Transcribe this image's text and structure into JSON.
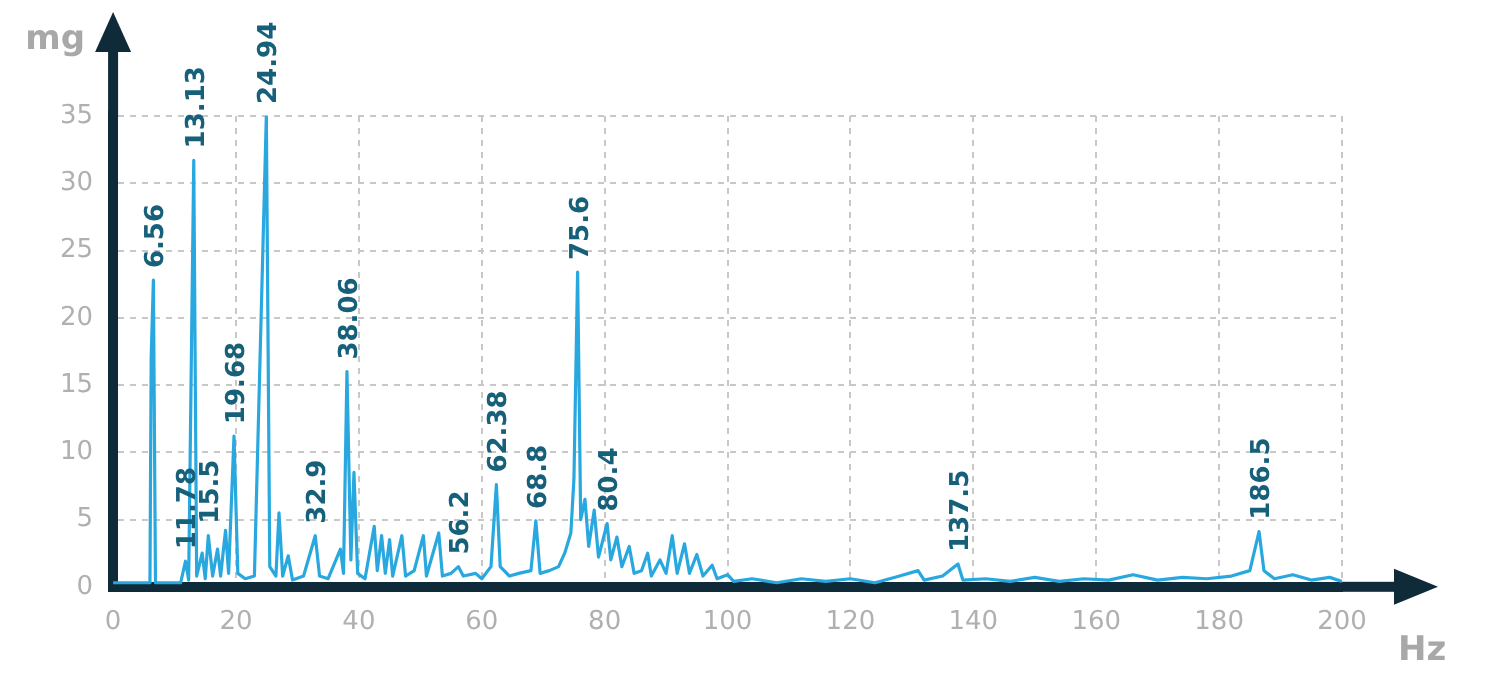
{
  "chart_data": {
    "type": "line",
    "xlabel": "Hz",
    "ylabel": "mg",
    "xlim": [
      0,
      200
    ],
    "xticks": [
      0,
      20,
      40,
      60,
      80,
      100,
      120,
      140,
      160,
      180,
      200
    ],
    "ylim": [
      0,
      35
    ],
    "yticks": [
      0,
      5,
      10,
      15,
      20,
      25,
      30,
      35
    ],
    "grid": true,
    "legend": false,
    "marker": "none",
    "line_style": "solid",
    "series": [
      {
        "color": "#29a8e0",
        "x": [
          0,
          6,
          6.2,
          6.56,
          6.9,
          11,
          11.78,
          12.3,
          13.13,
          13.6,
          14.5,
          15,
          15.5,
          16.2,
          17,
          17.5,
          18.3,
          18.8,
          19.68,
          20.3,
          21.5,
          23,
          24.94,
          25.5,
          26.5,
          27,
          27.6,
          28.5,
          29.2,
          31,
          32.9,
          33.6,
          35,
          37,
          37.5,
          38.06,
          38.7,
          39.2,
          39.8,
          41,
          42.5,
          43,
          43.7,
          44.3,
          45,
          45.5,
          47,
          47.6,
          49,
          50.5,
          51,
          53,
          53.6,
          55,
          56.2,
          57,
          59,
          60,
          61.5,
          62.38,
          63,
          64.5,
          66,
          68,
          68.8,
          69.5,
          71,
          72.5,
          73.5,
          74.5,
          75,
          75.6,
          76.1,
          76.8,
          77.4,
          78.3,
          79,
          80.4,
          81,
          82,
          82.8,
          84,
          84.8,
          86,
          87,
          87.6,
          89,
          90,
          91,
          91.8,
          93,
          93.8,
          95,
          96,
          97.5,
          98.3,
          100,
          101,
          104,
          108,
          112,
          116,
          120,
          124,
          128,
          131,
          132,
          135,
          137.5,
          138.3,
          142,
          146,
          150,
          154,
          158,
          162,
          166,
          170,
          174,
          178,
          182,
          185,
          186.5,
          187.3,
          189,
          192,
          195,
          198,
          200
        ],
        "values": [
          0.3,
          0.3,
          17,
          22.8,
          0.3,
          0.3,
          1.9,
          0.5,
          31.7,
          0.8,
          2.5,
          0.6,
          3.8,
          0.8,
          2.8,
          0.8,
          4.2,
          1,
          11.2,
          1,
          0.6,
          0.8,
          35,
          1.5,
          0.8,
          5.5,
          0.8,
          2.3,
          0.5,
          0.8,
          3.8,
          0.8,
          0.6,
          2.8,
          1,
          16,
          2,
          8.5,
          1,
          0.6,
          4.5,
          1.2,
          3.8,
          1,
          3.5,
          0.8,
          3.8,
          0.8,
          1.2,
          3.8,
          0.8,
          4,
          0.8,
          1,
          1.5,
          0.8,
          1,
          0.6,
          1.5,
          7.6,
          1.5,
          0.8,
          1,
          1.2,
          4.9,
          1,
          1.2,
          1.5,
          2.5,
          4,
          8,
          23.4,
          5,
          6.5,
          3,
          5.7,
          2.2,
          4.7,
          2,
          3.7,
          1.5,
          3,
          1,
          1.2,
          2.5,
          0.8,
          2,
          1,
          3.8,
          1,
          3.2,
          1,
          2.4,
          0.8,
          1.6,
          0.6,
          0.9,
          0.4,
          0.6,
          0.3,
          0.6,
          0.4,
          0.6,
          0.3,
          0.8,
          1.2,
          0.5,
          0.8,
          1.7,
          0.5,
          0.6,
          0.4,
          0.7,
          0.4,
          0.6,
          0.5,
          0.9,
          0.5,
          0.7,
          0.6,
          0.8,
          1.2,
          4.1,
          1.2,
          0.6,
          0.9,
          0.5,
          0.7,
          0.4
        ]
      }
    ],
    "annotations": [
      {
        "text": "6.56",
        "x": 6.56,
        "y": 22.8
      },
      {
        "text": "11.78",
        "x": 11.78,
        "y": 1.9
      },
      {
        "text": "13.13",
        "x": 13.13,
        "y": 31.7
      },
      {
        "text": "15.5",
        "x": 15.5,
        "y": 3.8
      },
      {
        "text": "19.68",
        "x": 19.68,
        "y": 11.2
      },
      {
        "text": "24.94",
        "x": 24.94,
        "y": 35
      },
      {
        "text": "32.9",
        "x": 32.9,
        "y": 3.8
      },
      {
        "text": "38.06",
        "x": 38.06,
        "y": 16
      },
      {
        "text": "56.2",
        "x": 56.2,
        "y": 1.5
      },
      {
        "text": "62.38",
        "x": 62.38,
        "y": 7.6
      },
      {
        "text": "68.8",
        "x": 68.8,
        "y": 4.9
      },
      {
        "text": "75.6",
        "x": 75.6,
        "y": 23.4
      },
      {
        "text": "80.4",
        "x": 80.4,
        "y": 4.7
      },
      {
        "text": "137.5",
        "x": 137.5,
        "y": 1.7
      },
      {
        "text": "186.5",
        "x": 186.5,
        "y": 4.1
      }
    ]
  }
}
